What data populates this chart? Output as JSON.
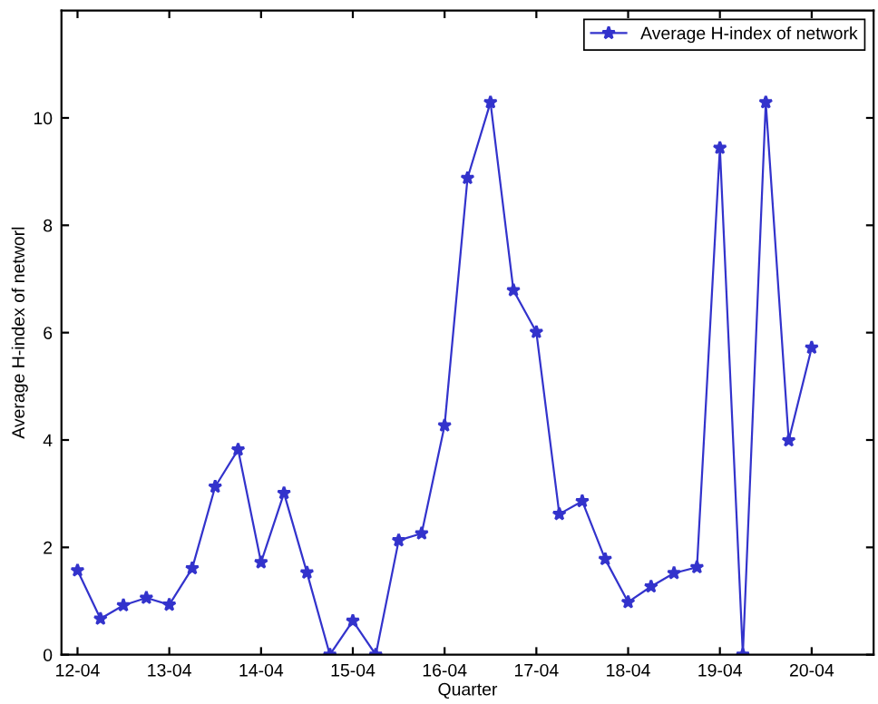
{
  "chart_data": {
    "type": "line",
    "xlabel": "Quarter",
    "ylabel": "Average H-index of networl",
    "categories": [
      "12-04",
      null,
      null,
      null,
      "13-04",
      null,
      null,
      null,
      "14-04",
      null,
      null,
      null,
      "15-04",
      null,
      null,
      null,
      "16-04",
      null,
      null,
      null,
      "17-04",
      null,
      null,
      null,
      "18-04",
      null,
      null,
      null,
      "19-04",
      null,
      null,
      null,
      "20-04"
    ],
    "series": [
      {
        "name": "Average H-index of network",
        "color": "#3333cc",
        "values": [
          1.57,
          0.67,
          0.92,
          1.06,
          0.93,
          1.61,
          3.13,
          3.82,
          1.72,
          3.01,
          1.53,
          0,
          0.63,
          0,
          2.13,
          2.26,
          4.27,
          8.88,
          10.29,
          6.79,
          6.01,
          2.62,
          2.86,
          1.78,
          0.98,
          1.27,
          1.52,
          1.63,
          9.44,
          0,
          10.29,
          3.99,
          5.72
        ]
      }
    ],
    "ylim": [
      0,
      12
    ],
    "yticks": [
      0,
      2,
      4,
      6,
      8,
      10
    ],
    "marker": "star",
    "line_style": "solid",
    "legend": "top right",
    "grid": false
  }
}
